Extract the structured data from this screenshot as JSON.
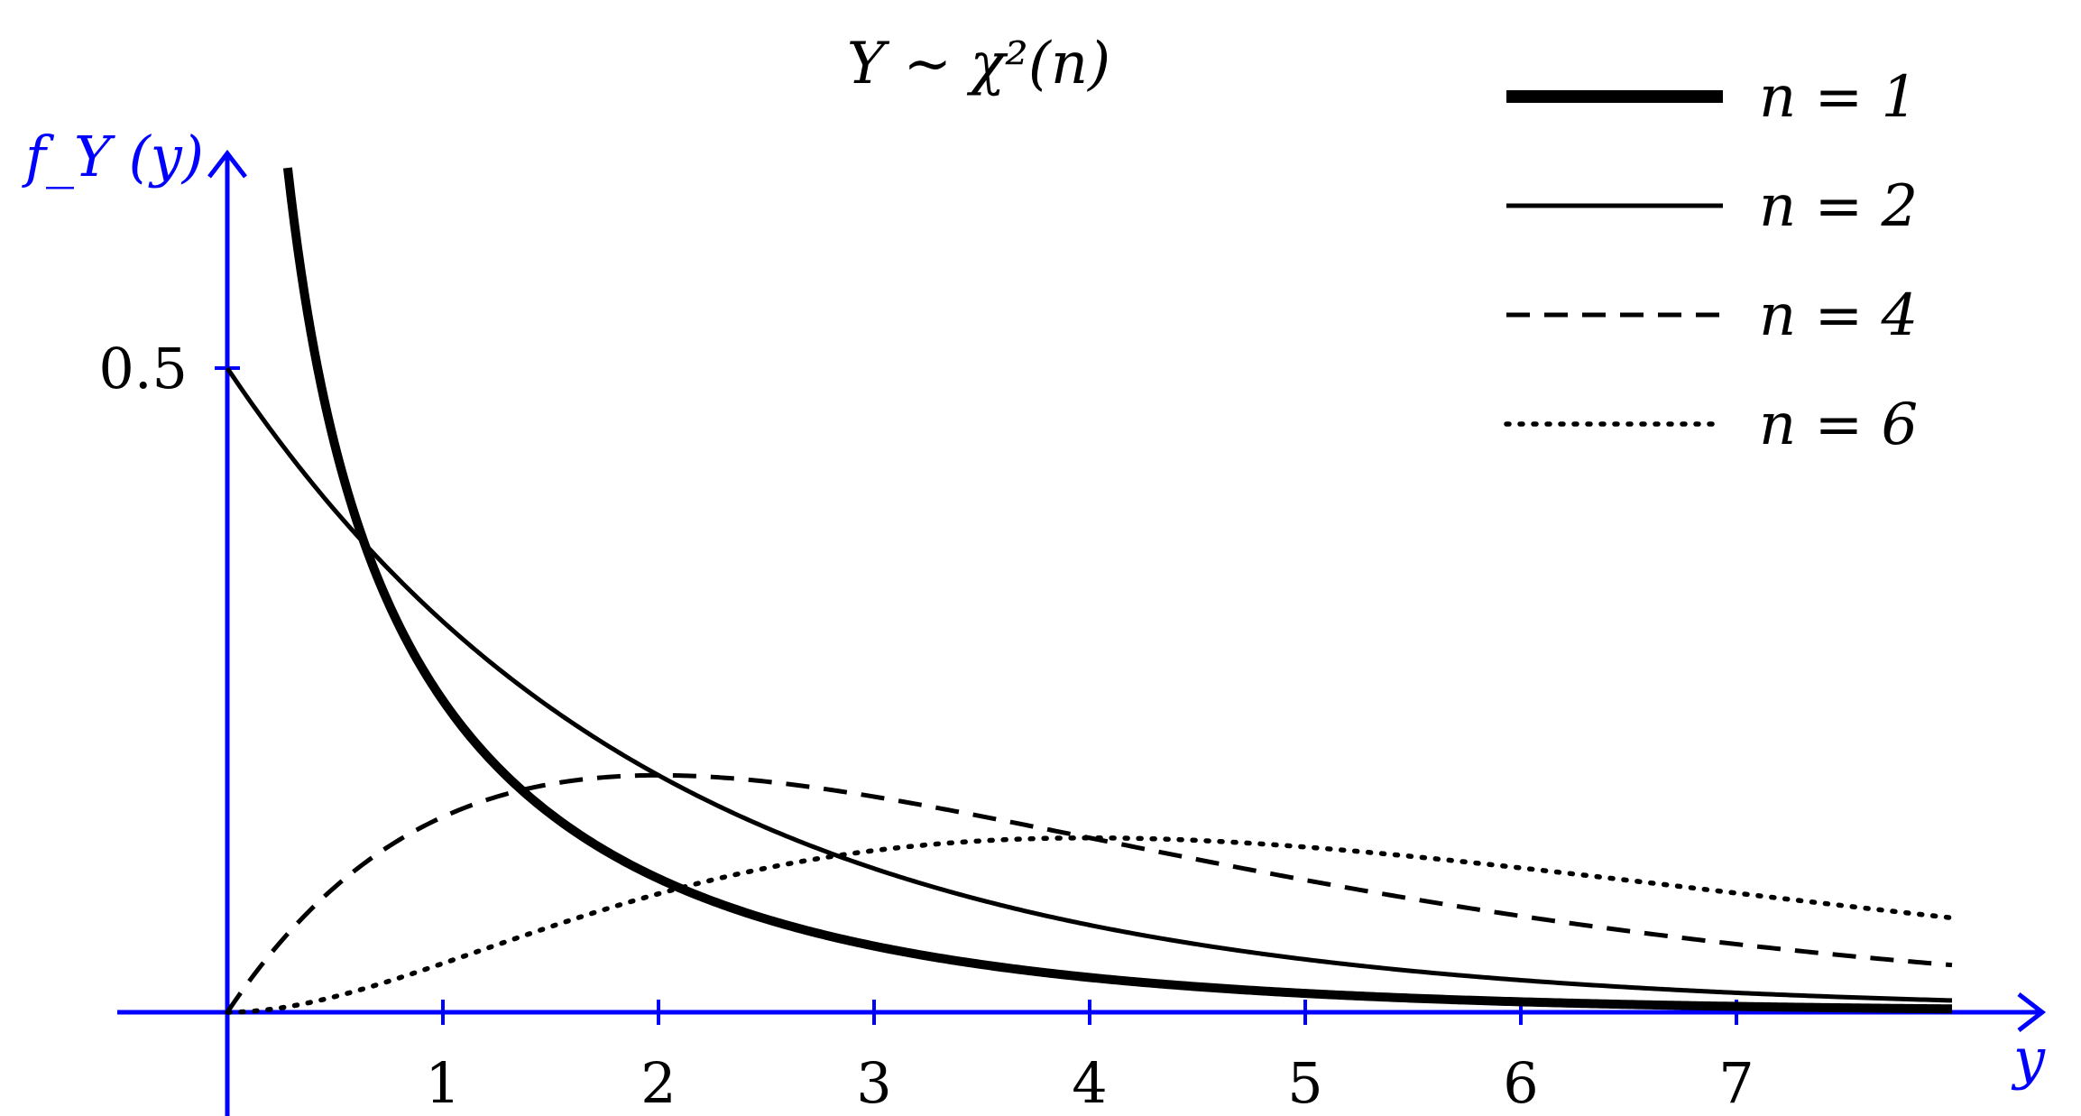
{
  "chart_data": {
    "type": "line",
    "title": "Y ~ χ²(n)",
    "xlabel": "y",
    "ylabel": "f_Y (y)",
    "xlim": [
      -0.5,
      8.5
    ],
    "ylim": [
      -0.08,
      0.6
    ],
    "x_ticks": [
      1,
      2,
      3,
      4,
      5,
      6,
      7
    ],
    "y_ticks": [
      0.5
    ],
    "grid": false,
    "legend_position": "top-right",
    "axis_color": "#0000ff",
    "curve_color": "#000000",
    "series": [
      {
        "name": "n = 1",
        "df": 1,
        "style": "thick-solid",
        "x_range": [
          0.28,
          8
        ],
        "y_max_shown": 0.66
      },
      {
        "name": "n = 2",
        "df": 2,
        "style": "solid",
        "x_range": [
          0,
          8
        ]
      },
      {
        "name": "n = 4",
        "df": 4,
        "style": "dashed",
        "x_range": [
          0,
          8
        ],
        "peak": [
          2,
          0.184
        ]
      },
      {
        "name": "n = 6",
        "df": 6,
        "style": "dotted",
        "x_range": [
          0,
          8
        ],
        "peak": [
          4,
          0.135
        ]
      }
    ]
  }
}
